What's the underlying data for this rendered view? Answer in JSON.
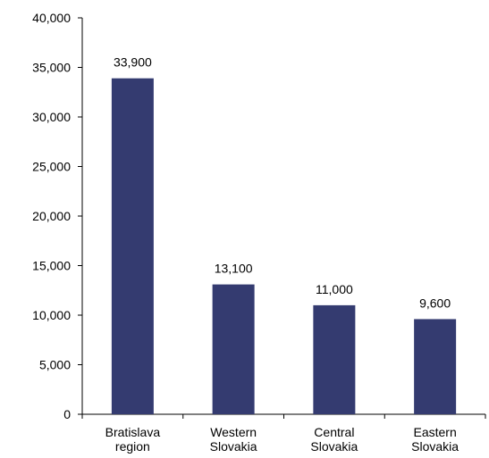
{
  "chart_data": {
    "type": "bar",
    "title": "",
    "xlabel": "",
    "ylabel": "",
    "categories": [
      [
        "Bratislava",
        "region"
      ],
      [
        "Western",
        "Slovakia"
      ],
      [
        "Central",
        "Slovakia"
      ],
      [
        "Eastern",
        "Slovakia"
      ]
    ],
    "values": [
      33900,
      13100,
      11000,
      9600
    ],
    "data_labels": [
      "33,900",
      "13,100",
      "11,000",
      "9,600"
    ],
    "ylim": [
      0,
      40000
    ],
    "yticks": [
      0,
      5000,
      10000,
      15000,
      20000,
      25000,
      30000,
      35000,
      40000
    ],
    "ytick_labels": [
      "0",
      "5,000",
      "10,000",
      "15,000",
      "20,000",
      "25,000",
      "30,000",
      "35,000",
      "40,000"
    ],
    "grid": false,
    "legend": "none",
    "colors": {
      "bar": "#343B70",
      "axis": "#000000",
      "text": "#000000"
    }
  }
}
